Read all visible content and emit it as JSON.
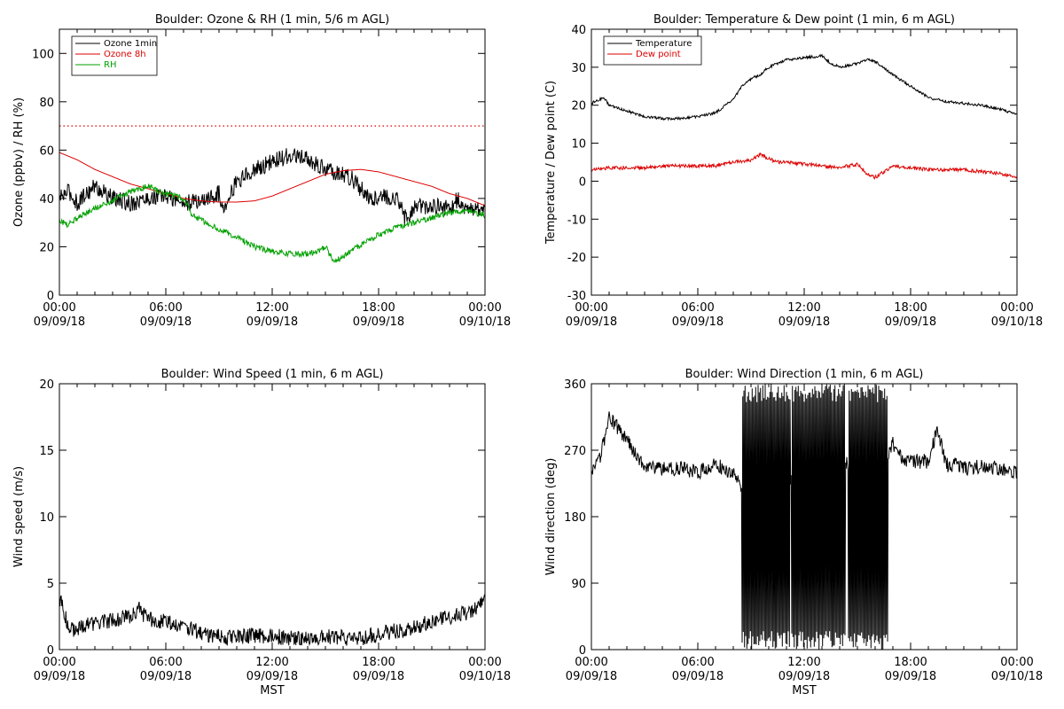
{
  "colors": {
    "axis": "#000000",
    "ozone_1min": "#000000",
    "ozone_8h": "#dd0000",
    "rh": "#00a000",
    "threshold": "#dd0000",
    "temperature": "#000000",
    "dew_point": "#dd0000",
    "wind": "#000000"
  },
  "chart_data": [
    {
      "type": "line",
      "title": "Boulder: Ozone & RH (1 min, 5/6 m AGL)",
      "xlabel": "",
      "ylabel": "Ozone (ppbv) / RH (%)",
      "ylim": [
        0,
        110
      ],
      "yticks": [
        0,
        20,
        40,
        60,
        80,
        100
      ],
      "xlim_hours": [
        0,
        24
      ],
      "xticks": [
        {
          "time": "00:00",
          "date": "09/09/18"
        },
        {
          "time": "06:00",
          "date": "09/09/18"
        },
        {
          "time": "12:00",
          "date": "09/09/18"
        },
        {
          "time": "18:00",
          "date": "09/09/18"
        },
        {
          "time": "00:00",
          "date": "09/10/18"
        }
      ],
      "legend_position": "top-left",
      "reference_lines": [
        {
          "y": 70,
          "style": "dotted",
          "color": "#dd0000"
        }
      ],
      "series": [
        {
          "name": "Ozone 1min",
          "color": "#000000",
          "noise": 3.5,
          "x": [
            0,
            0.5,
            1,
            1.5,
            2,
            3,
            4,
            5,
            6,
            7,
            8,
            9,
            9.2,
            10,
            11,
            12,
            13,
            13.5,
            14,
            14.5,
            15,
            15.5,
            16,
            16.5,
            17,
            17.5,
            18,
            19,
            19.5,
            20,
            21,
            22,
            22.5,
            23,
            24
          ],
          "y": [
            40,
            43,
            38,
            42,
            45,
            40,
            38,
            40,
            41,
            38,
            39,
            42,
            36,
            47,
            52,
            55,
            58,
            57,
            56,
            54,
            52,
            51,
            50,
            48,
            44,
            40,
            41,
            40,
            32,
            36,
            37,
            36,
            40,
            35,
            36
          ]
        },
        {
          "name": "Ozone 8h",
          "color": "#dd0000",
          "noise": 0,
          "x": [
            0,
            1,
            2,
            3,
            4,
            5,
            6,
            7,
            8,
            9,
            10,
            11,
            12,
            13,
            14,
            15,
            16,
            17,
            18,
            19,
            20,
            21,
            22,
            23,
            24
          ],
          "y": [
            59,
            56,
            52,
            49,
            46,
            44,
            42,
            40,
            39,
            38.5,
            38.5,
            39,
            41,
            44,
            47,
            50,
            51.5,
            52,
            51,
            49,
            47,
            45,
            42,
            40,
            37
          ]
        },
        {
          "name": "RH",
          "color": "#00a000",
          "noise": 1.2,
          "x": [
            0,
            0.5,
            1,
            1.5,
            2,
            3,
            4,
            5,
            6,
            7,
            7.5,
            8,
            8.5,
            9,
            10,
            11,
            12,
            13,
            14,
            14.5,
            15,
            15.5,
            16,
            17,
            18,
            19,
            20,
            21,
            22,
            23,
            24
          ],
          "y": [
            31,
            29,
            32,
            34,
            36,
            39,
            43,
            45,
            42,
            40,
            33,
            31,
            29,
            27,
            24,
            20,
            18,
            17,
            17,
            18,
            20,
            14,
            16,
            21,
            25,
            28,
            30,
            32,
            34,
            35,
            33
          ]
        }
      ]
    },
    {
      "type": "line",
      "title": "Boulder: Temperature & Dew point (1 min, 6 m AGL)",
      "xlabel": "",
      "ylabel": "Temperature / Dew point (C)",
      "ylim": [
        -30,
        40
      ],
      "yticks": [
        -30,
        -20,
        -10,
        0,
        10,
        20,
        30,
        40
      ],
      "xlim_hours": [
        0,
        24
      ],
      "xticks": [
        {
          "time": "00:00",
          "date": "09/09/18"
        },
        {
          "time": "06:00",
          "date": "09/09/18"
        },
        {
          "time": "12:00",
          "date": "09/09/18"
        },
        {
          "time": "18:00",
          "date": "09/09/18"
        },
        {
          "time": "00:00",
          "date": "09/10/18"
        }
      ],
      "legend_position": "top-left",
      "series": [
        {
          "name": "Temperature",
          "color": "#000000",
          "noise": 0.35,
          "x": [
            0,
            0.7,
            1,
            2,
            3,
            4,
            5,
            6,
            7,
            8,
            8.5,
            9,
            9.5,
            10,
            11,
            12,
            13,
            13.5,
            14,
            15,
            15.5,
            16,
            17,
            18,
            19,
            20,
            21,
            22,
            23,
            24
          ],
          "y": [
            20.5,
            22,
            20,
            18.5,
            17,
            16.5,
            16.5,
            17,
            18,
            21.5,
            25,
            27,
            28,
            30,
            32,
            32.5,
            33,
            31,
            30,
            31,
            32,
            31.5,
            28,
            25,
            22,
            21,
            20.5,
            20,
            19,
            17.5
          ]
        },
        {
          "name": "Dew point",
          "color": "#dd0000",
          "noise": 0.45,
          "x": [
            0,
            1,
            2,
            3,
            4,
            5,
            6,
            7,
            8,
            9,
            9.5,
            10,
            10.5,
            11,
            12,
            13,
            14,
            15,
            15.5,
            16,
            16.5,
            17,
            18,
            19,
            20,
            21,
            22,
            23,
            24
          ],
          "y": [
            3,
            3.5,
            3.5,
            3.5,
            4,
            4,
            4,
            4,
            5,
            5.5,
            7,
            6,
            5,
            5,
            4.5,
            4,
            3.5,
            4.5,
            2,
            1,
            2.5,
            4,
            3.5,
            3,
            3,
            3,
            2.5,
            2,
            1
          ]
        }
      ]
    },
    {
      "type": "line",
      "title": "Boulder: Wind Speed (1 min, 6 m AGL)",
      "xlabel": "MST",
      "ylabel": "Wind speed (m/s)",
      "ylim": [
        0,
        20
      ],
      "yticks": [
        0,
        5,
        10,
        15,
        20
      ],
      "xlim_hours": [
        0,
        24
      ],
      "xticks": [
        {
          "time": "00:00",
          "date": "09/09/18"
        },
        {
          "time": "06:00",
          "date": "09/09/18"
        },
        {
          "time": "12:00",
          "date": "09/09/18"
        },
        {
          "time": "18:00",
          "date": "09/09/18"
        },
        {
          "time": "00:00",
          "date": "09/10/18"
        }
      ],
      "series": [
        {
          "color": "#000000",
          "noise": 0.6,
          "x": [
            0,
            0.3,
            0.7,
            1,
            2,
            3,
            4,
            4.5,
            5,
            6,
            7,
            8,
            9,
            10,
            11,
            12,
            13,
            14,
            15,
            16,
            17,
            18,
            19,
            20,
            21,
            22,
            23,
            24
          ],
          "y": [
            4,
            2.5,
            1.5,
            1.6,
            2,
            2.2,
            2.5,
            3,
            2.3,
            2.1,
            1.8,
            1.2,
            1,
            0.9,
            1.1,
            1,
            0.9,
            0.8,
            1,
            0.9,
            0.8,
            1.2,
            1.4,
            1.7,
            2.1,
            2.4,
            2.8,
            3.6
          ]
        }
      ]
    },
    {
      "type": "line",
      "title": "Boulder: Wind Direction (1 min, 6 m AGL)",
      "xlabel": "MST",
      "ylabel": "Wind direction (deg)",
      "ylim": [
        0,
        360
      ],
      "yticks": [
        0,
        90,
        180,
        270,
        360
      ],
      "xlim_hours": [
        0,
        24
      ],
      "xticks": [
        {
          "time": "00:00",
          "date": "09/09/18"
        },
        {
          "time": "06:00",
          "date": "09/09/18"
        },
        {
          "time": "12:00",
          "date": "09/09/18"
        },
        {
          "time": "18:00",
          "date": "09/09/18"
        },
        {
          "time": "00:00",
          "date": "09/10/18"
        }
      ],
      "series": [
        {
          "color": "#000000",
          "noise": 10,
          "x": [
            0,
            0.5,
            1,
            1.5,
            2,
            2.5,
            3,
            4,
            5,
            6,
            7,
            7.5,
            8,
            8.5,
            16.7,
            17,
            17.5,
            18,
            19,
            19.5,
            20,
            20.5,
            21,
            22,
            23,
            24
          ],
          "y": [
            235,
            260,
            315,
            300,
            285,
            265,
            250,
            245,
            245,
            240,
            250,
            245,
            240,
            215,
            265,
            280,
            260,
            255,
            255,
            300,
            250,
            250,
            245,
            248,
            245,
            240
          ]
        }
      ],
      "wraparound_segments": [
        [
          8.5,
          11.2
        ],
        [
          11.3,
          13.8
        ],
        [
          13.8,
          14.3
        ],
        [
          14.5,
          16.7
        ]
      ]
    }
  ]
}
